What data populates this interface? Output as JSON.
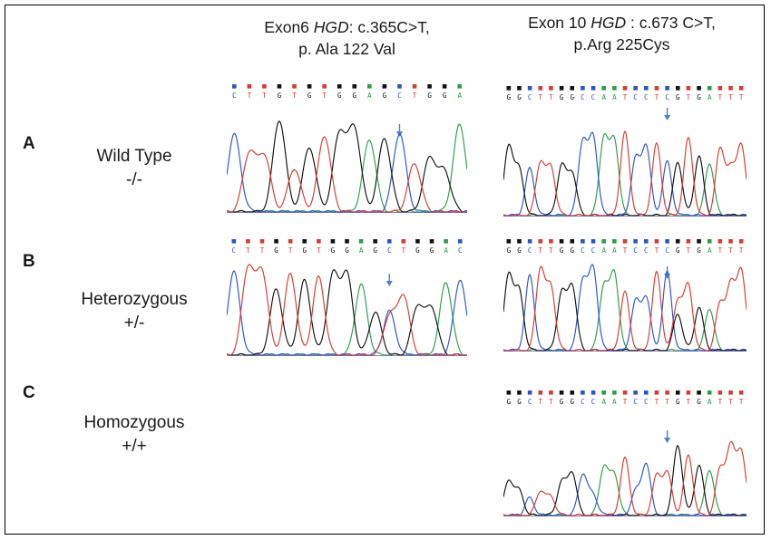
{
  "titles": {
    "exon6": {
      "prefix": "Exon6 ",
      "gene": "HGD",
      "mutation": ": c.365C>T,",
      "protein": "p. Ala 122 Val"
    },
    "exon10": {
      "prefix": "Exon 10 ",
      "gene": "HGD",
      "mutation": " : c.673 C>T,",
      "protein": "p.Arg 225Cys"
    }
  },
  "rows": [
    {
      "letter": "A",
      "genotype": "Wild Type",
      "code": "-/-"
    },
    {
      "letter": "B",
      "genotype": "Heterozygous",
      "code": "+/-"
    },
    {
      "letter": "C",
      "genotype": "Homozygous",
      "code": "+/+"
    }
  ],
  "sequences": {
    "exon6_wt": "CTTGTGTGGAGCTGGA",
    "exon6_het": "CTTGTGTGGAGCTGGAC",
    "exon10_wt": "GGCTTGGCCAATCCTCGTGATTT",
    "exon10_het": "GGCTTGGCCAATCCTCGTGATTT",
    "exon10_hom": "GGCTTGGCCAATCCTTGTGATTT"
  },
  "base_colors": {
    "A": "#2e9d4a",
    "C": "#2c55c8",
    "G": "#111111",
    "T": "#d83a34"
  },
  "arrow_color": "#4a7fd0"
}
